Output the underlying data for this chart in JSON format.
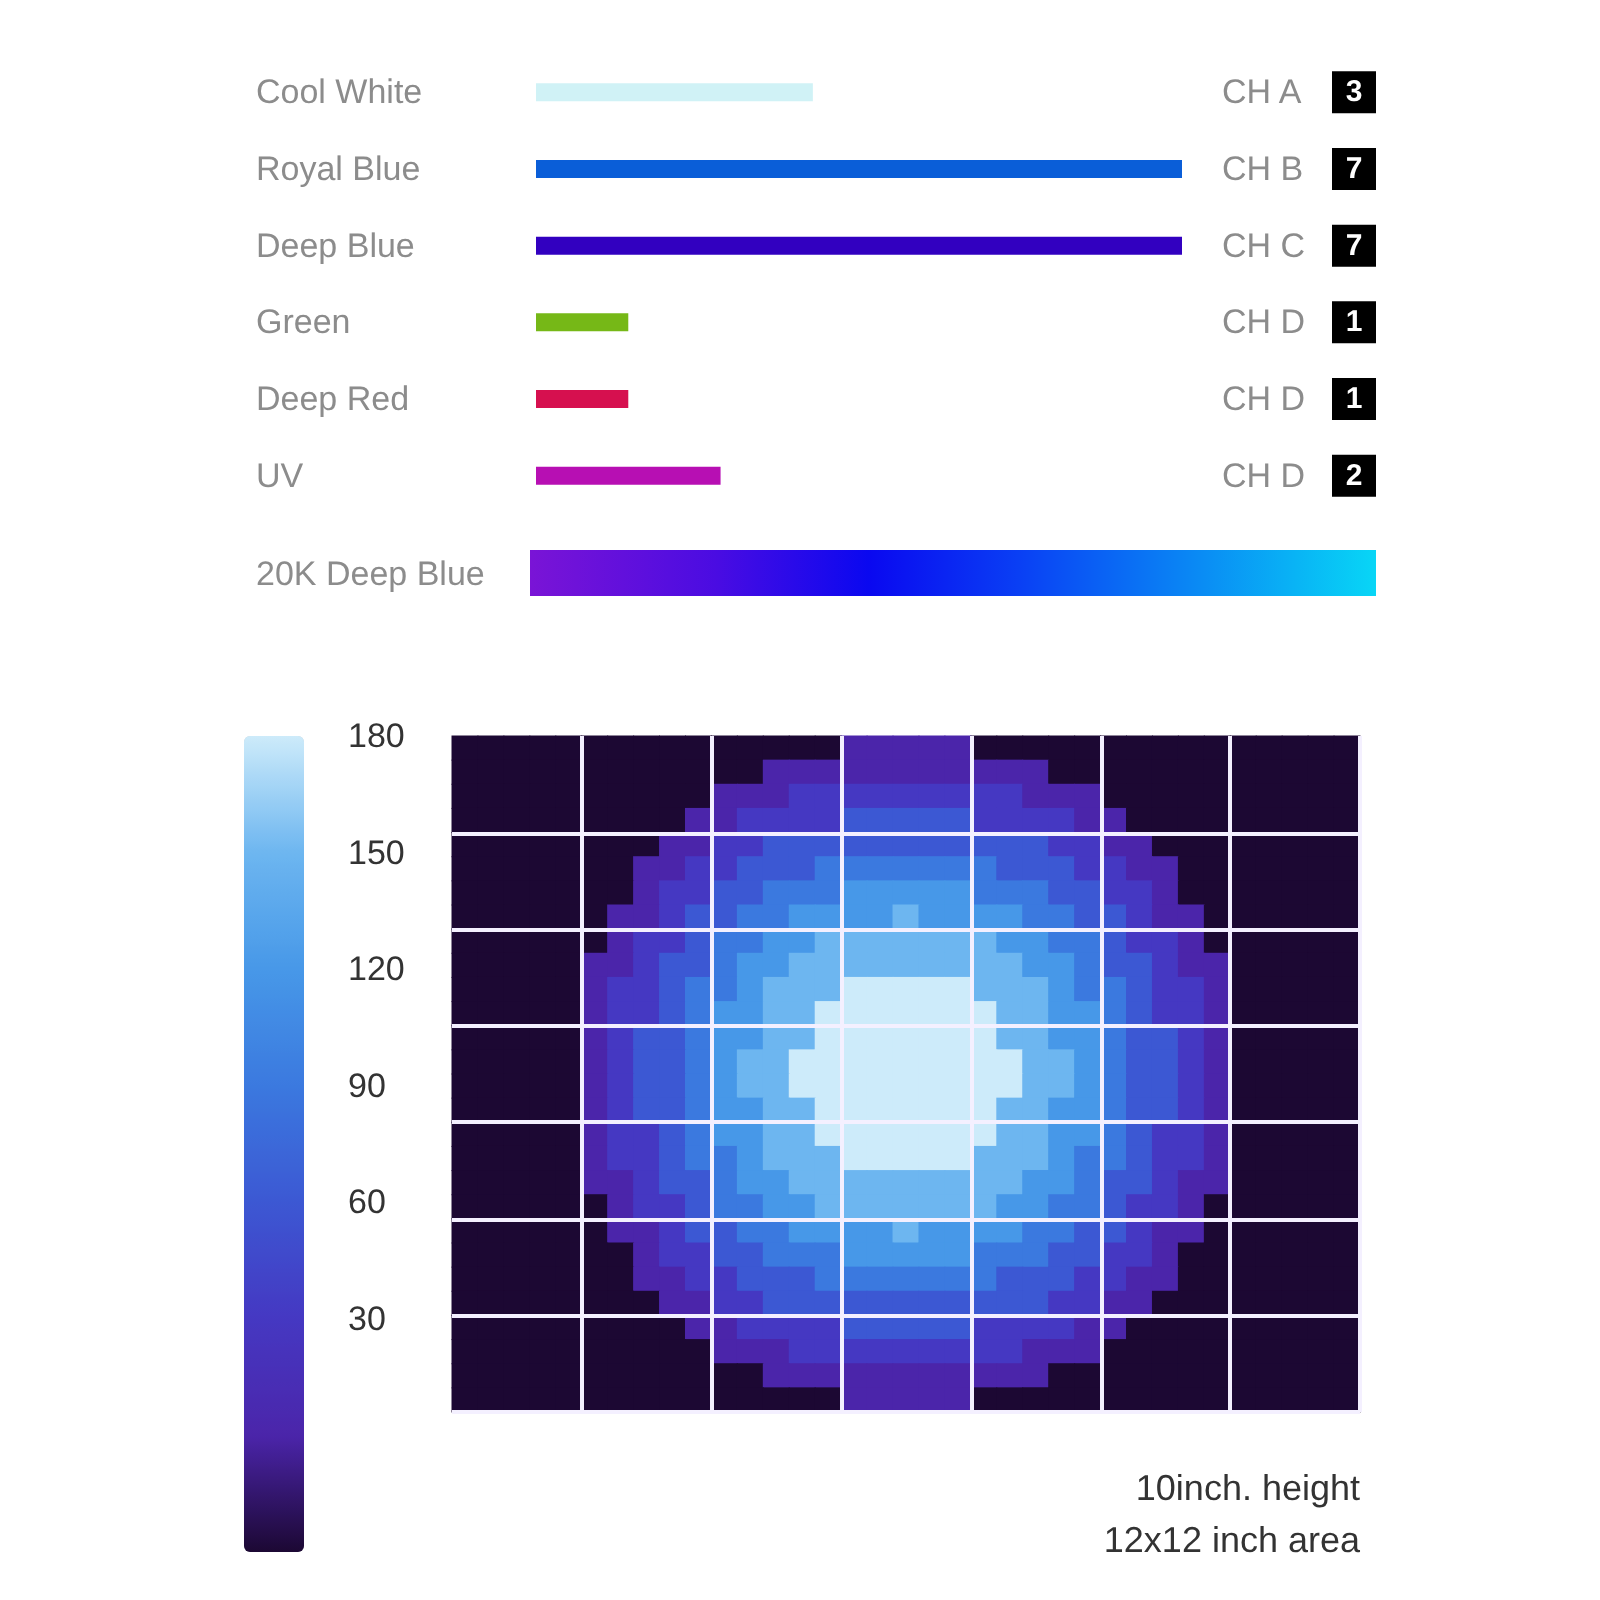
{
  "chart_data": [
    {
      "type": "bar",
      "orientation": "horizontal",
      "categories": [
        "Cool White",
        "Royal Blue",
        "Deep Blue",
        "Green",
        "Deep Red",
        "UV"
      ],
      "values": [
        3,
        7,
        7,
        1,
        1,
        2
      ],
      "colors": [
        "#d0f2f6",
        "#0a5ed8",
        "#3200c0",
        "#76b817",
        "#d6104f",
        "#b70fb3"
      ],
      "data_labels": true,
      "tick_labels": "y",
      "annotations": [
        "CH A",
        "CH B",
        "CH C",
        "CH D",
        "CH D",
        "CH D",
        "20K Deep Blue"
      ]
    },
    {
      "type": "heatmap",
      "grid": true,
      "tick_labels": false,
      "clim": [
        -30,
        180
      ],
      "cticks": [
        30,
        60,
        90,
        120,
        150,
        180
      ],
      "annotations": [
        "10inch. height",
        "12x12 inch area"
      ],
      "categories": [
        null,
        null,
        null,
        null,
        null,
        null,
        null,
        null,
        null,
        null,
        null,
        null,
        null,
        null,
        null,
        null,
        null,
        null,
        null,
        null,
        null,
        null,
        null,
        null,
        null,
        null,
        null,
        null,
        null,
        null,
        null,
        null,
        null,
        null,
        null
      ],
      "y_categories": [
        null,
        null,
        null,
        null,
        null,
        null,
        null,
        null,
        null,
        null,
        null,
        null,
        null,
        null,
        null,
        null,
        null,
        null,
        null,
        null,
        null,
        null,
        null,
        null,
        null,
        null,
        null,
        null
      ],
      "cells": [
        [
          -30,
          -30,
          -30,
          -30,
          -30,
          -30,
          -30,
          -30,
          -30,
          -30,
          -30,
          -30,
          -30,
          -30,
          -30,
          0,
          0,
          0,
          0,
          0,
          -30,
          -30,
          -30,
          -30,
          -30,
          -30,
          -30,
          -30,
          -30,
          -30,
          -30,
          -30,
          -30,
          -30,
          -30
        ],
        [
          -30,
          -30,
          -30,
          -30,
          -30,
          -30,
          -30,
          -30,
          -30,
          -30,
          -30,
          -30,
          0,
          0,
          0,
          0,
          0,
          0,
          0,
          0,
          0,
          0,
          0,
          -30,
          -30,
          -30,
          -30,
          -30,
          -30,
          -30,
          -30,
          -30,
          -30,
          -30,
          -30
        ],
        [
          -30,
          -30,
          -30,
          -30,
          -30,
          -30,
          -30,
          -30,
          -30,
          -30,
          0,
          0,
          0,
          30,
          30,
          30,
          30,
          30,
          30,
          30,
          30,
          30,
          0,
          0,
          0,
          -30,
          -30,
          -30,
          -30,
          -30,
          -30,
          -30,
          -30,
          -30,
          -30
        ],
        [
          -30,
          -30,
          -30,
          -30,
          -30,
          -30,
          -30,
          -30,
          -30,
          0,
          0,
          30,
          30,
          30,
          30,
          60,
          60,
          60,
          60,
          60,
          30,
          30,
          30,
          30,
          0,
          0,
          -30,
          -30,
          -30,
          -30,
          -30,
          -30,
          -30,
          -30,
          -30
        ],
        [
          -30,
          -30,
          -30,
          -30,
          -30,
          -30,
          -30,
          -30,
          0,
          0,
          30,
          30,
          60,
          60,
          60,
          60,
          60,
          60,
          60,
          60,
          60,
          60,
          60,
          30,
          30,
          0,
          0,
          -30,
          -30,
          -30,
          -30,
          -30,
          -30,
          -30,
          -30
        ],
        [
          -30,
          -30,
          -30,
          -30,
          -30,
          -30,
          -30,
          0,
          0,
          30,
          30,
          60,
          60,
          60,
          90,
          90,
          90,
          90,
          90,
          90,
          90,
          60,
          60,
          60,
          30,
          30,
          0,
          0,
          -30,
          -30,
          -30,
          -30,
          -30,
          -30,
          -30
        ],
        [
          -30,
          -30,
          -30,
          -30,
          -30,
          -30,
          -30,
          0,
          30,
          30,
          60,
          60,
          90,
          90,
          90,
          120,
          120,
          120,
          120,
          120,
          90,
          90,
          90,
          60,
          60,
          30,
          30,
          0,
          -30,
          -30,
          -30,
          -30,
          -30,
          -30,
          -30
        ],
        [
          -30,
          -30,
          -30,
          -30,
          -30,
          -30,
          0,
          0,
          30,
          60,
          60,
          90,
          90,
          120,
          120,
          120,
          120,
          150,
          120,
          120,
          120,
          120,
          90,
          90,
          60,
          60,
          30,
          0,
          0,
          -30,
          -30,
          -30,
          -30,
          -30,
          -30
        ],
        [
          -30,
          -30,
          -30,
          -30,
          -30,
          -30,
          0,
          30,
          30,
          60,
          90,
          90,
          120,
          120,
          150,
          150,
          150,
          150,
          150,
          150,
          150,
          120,
          120,
          90,
          90,
          60,
          30,
          30,
          0,
          -30,
          -30,
          -30,
          -30,
          -30,
          -30
        ],
        [
          -30,
          -30,
          -30,
          -30,
          -30,
          0,
          0,
          30,
          60,
          60,
          90,
          120,
          120,
          150,
          150,
          150,
          150,
          150,
          150,
          150,
          150,
          150,
          120,
          120,
          90,
          60,
          60,
          30,
          0,
          0,
          -30,
          -30,
          -30,
          -30,
          -30
        ],
        [
          -30,
          -30,
          -30,
          -30,
          -30,
          0,
          30,
          30,
          60,
          90,
          90,
          120,
          150,
          150,
          150,
          180,
          180,
          180,
          180,
          180,
          150,
          150,
          150,
          120,
          90,
          90,
          60,
          30,
          30,
          0,
          -30,
          -30,
          -30,
          -30,
          -30
        ],
        [
          -30,
          -30,
          -30,
          -30,
          -30,
          0,
          30,
          30,
          60,
          90,
          120,
          120,
          150,
          150,
          180,
          180,
          180,
          180,
          180,
          180,
          180,
          150,
          150,
          120,
          120,
          90,
          60,
          30,
          30,
          0,
          -30,
          -30,
          -30,
          -30,
          -30
        ],
        [
          -30,
          -30,
          -30,
          -30,
          -30,
          0,
          30,
          60,
          60,
          90,
          120,
          120,
          150,
          150,
          180,
          180,
          180,
          180,
          180,
          180,
          180,
          150,
          150,
          120,
          120,
          90,
          60,
          60,
          30,
          0,
          -30,
          -30,
          -30,
          -30,
          -30
        ],
        [
          -30,
          -30,
          -30,
          -30,
          -30,
          0,
          30,
          60,
          60,
          90,
          120,
          150,
          150,
          180,
          180,
          180,
          180,
          180,
          180,
          180,
          180,
          180,
          150,
          150,
          120,
          90,
          60,
          60,
          30,
          0,
          -30,
          -30,
          -30,
          -30,
          -30
        ],
        [
          -30,
          -30,
          -30,
          -30,
          -30,
          0,
          30,
          60,
          60,
          90,
          120,
          150,
          150,
          180,
          180,
          180,
          180,
          180,
          180,
          180,
          180,
          180,
          150,
          150,
          120,
          90,
          60,
          60,
          30,
          0,
          -30,
          -30,
          -30,
          -30,
          -30
        ],
        [
          -30,
          -30,
          -30,
          -30,
          -30,
          0,
          30,
          60,
          60,
          90,
          120,
          120,
          150,
          150,
          180,
          180,
          180,
          180,
          180,
          180,
          180,
          150,
          150,
          120,
          120,
          90,
          60,
          60,
          30,
          0,
          -30,
          -30,
          -30,
          -30,
          -30
        ],
        [
          -30,
          -30,
          -30,
          -30,
          -30,
          0,
          30,
          30,
          60,
          90,
          120,
          120,
          150,
          150,
          180,
          180,
          180,
          180,
          180,
          180,
          180,
          150,
          150,
          120,
          120,
          90,
          60,
          30,
          30,
          0,
          -30,
          -30,
          -30,
          -30,
          -30
        ],
        [
          -30,
          -30,
          -30,
          -30,
          -30,
          0,
          30,
          30,
          60,
          90,
          90,
          120,
          150,
          150,
          150,
          180,
          180,
          180,
          180,
          180,
          150,
          150,
          150,
          120,
          90,
          90,
          60,
          30,
          30,
          0,
          -30,
          -30,
          -30,
          -30,
          -30
        ],
        [
          -30,
          -30,
          -30,
          -30,
          -30,
          0,
          0,
          30,
          60,
          60,
          90,
          120,
          120,
          150,
          150,
          150,
          150,
          150,
          150,
          150,
          150,
          150,
          120,
          120,
          90,
          60,
          60,
          30,
          0,
          0,
          -30,
          -30,
          -30,
          -30,
          -30
        ],
        [
          -30,
          -30,
          -30,
          -30,
          -30,
          -30,
          0,
          30,
          30,
          60,
          90,
          90,
          120,
          120,
          150,
          150,
          150,
          150,
          150,
          150,
          150,
          120,
          120,
          90,
          90,
          60,
          30,
          30,
          0,
          -30,
          -30,
          -30,
          -30,
          -30,
          -30
        ],
        [
          -30,
          -30,
          -30,
          -30,
          -30,
          -30,
          0,
          0,
          30,
          60,
          60,
          90,
          90,
          120,
          120,
          120,
          120,
          150,
          120,
          120,
          120,
          120,
          90,
          90,
          60,
          60,
          30,
          0,
          0,
          -30,
          -30,
          -30,
          -30,
          -30,
          -30
        ],
        [
          -30,
          -30,
          -30,
          -30,
          -30,
          -30,
          -30,
          0,
          30,
          30,
          60,
          60,
          90,
          90,
          90,
          120,
          120,
          120,
          120,
          120,
          90,
          90,
          90,
          60,
          60,
          30,
          30,
          0,
          -30,
          -30,
          -30,
          -30,
          -30,
          -30,
          -30
        ],
        [
          -30,
          -30,
          -30,
          -30,
          -30,
          -30,
          -30,
          0,
          0,
          30,
          30,
          60,
          60,
          60,
          90,
          90,
          90,
          90,
          90,
          90,
          90,
          60,
          60,
          60,
          30,
          30,
          0,
          0,
          -30,
          -30,
          -30,
          -30,
          -30,
          -30,
          -30
        ],
        [
          -30,
          -30,
          -30,
          -30,
          -30,
          -30,
          -30,
          -30,
          0,
          0,
          30,
          30,
          60,
          60,
          60,
          60,
          60,
          60,
          60,
          60,
          60,
          60,
          60,
          30,
          30,
          0,
          0,
          -30,
          -30,
          -30,
          -30,
          -30,
          -30,
          -30,
          -30
        ],
        [
          -30,
          -30,
          -30,
          -30,
          -30,
          -30,
          -30,
          -30,
          -30,
          0,
          0,
          30,
          30,
          30,
          30,
          60,
          60,
          60,
          60,
          60,
          30,
          30,
          30,
          30,
          0,
          0,
          -30,
          -30,
          -30,
          -30,
          -30,
          -30,
          -30,
          -30,
          -30
        ],
        [
          -30,
          -30,
          -30,
          -30,
          -30,
          -30,
          -30,
          -30,
          -30,
          -30,
          0,
          0,
          0,
          30,
          30,
          30,
          30,
          30,
          30,
          30,
          30,
          30,
          0,
          0,
          0,
          -30,
          -30,
          -30,
          -30,
          -30,
          -30,
          -30,
          -30,
          -30,
          -30
        ],
        [
          -30,
          -30,
          -30,
          -30,
          -30,
          -30,
          -30,
          -30,
          -30,
          -30,
          -30,
          -30,
          0,
          0,
          0,
          0,
          0,
          0,
          0,
          0,
          0,
          0,
          0,
          -30,
          -30,
          -30,
          -30,
          -30,
          -30,
          -30,
          -30,
          -30,
          -30,
          -30,
          -30
        ],
        [
          -30,
          -30,
          -30,
          -30,
          -30,
          -30,
          -30,
          -30,
          -30,
          -30,
          -30,
          -30,
          -30,
          -30,
          -30,
          0,
          0,
          0,
          0,
          0,
          -30,
          -30,
          -30,
          -30,
          -30,
          -30,
          -30,
          -30,
          -30,
          -30,
          -30,
          -30,
          -30,
          -30,
          -30
        ]
      ]
    }
  ]
}
